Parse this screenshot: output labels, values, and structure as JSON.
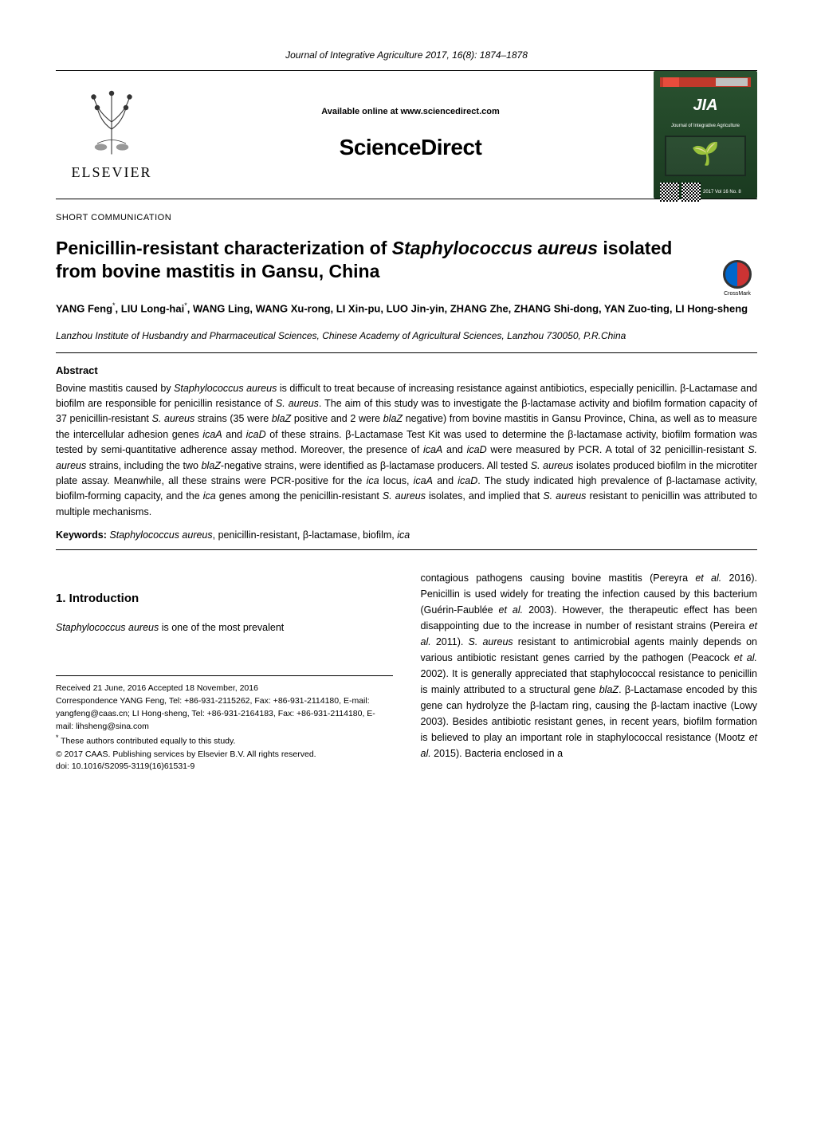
{
  "journal_citation": "Journal of Integrative Agriculture  2017, 16(8): 1874–1878",
  "header": {
    "available_text": "Available online at www.sciencedirect.com",
    "sciencedirect": "ScienceDirect",
    "elsevier": "ELSEVIER",
    "jia": {
      "title": "JIA",
      "subtitle": "Journal of Integrative Agriculture",
      "vol_info": "2017   Vol 16   No. 8"
    }
  },
  "crossmark_label": "CrossMark",
  "section_label": "SHORT COMMUNICATION",
  "article": {
    "title": "Penicillin-resistant characterization of <em>Staphylococcus aureus</em> isolated from bovine mastitis in Gansu, China",
    "authors": "YANG Feng<sup>*</sup>, LIU Long-hai<sup>*</sup>, WANG Ling, WANG Xu-rong, LI Xin-pu, LUO Jin-yin, ZHANG Zhe, ZHANG Shi-dong, YAN Zuo-ting, LI Hong-sheng",
    "affiliation": "Lanzhou Institute of Husbandry and Pharmaceutical Sciences, Chinese Academy of Agricultural Sciences, Lanzhou 730050, P.R.China"
  },
  "abstract": {
    "label": "Abstract",
    "text": "Bovine mastitis caused by <em>Staphylococcus aureus</em> is difficult to treat because of increasing resistance against antibiotics, especially penicillin.  β-Lactamase and biofilm are responsible for penicillin resistance of <em>S. aureus</em>.  The aim of this study was to investigate the β-lactamase activity and biofilm formation capacity of 37 penicillin-resistant <em>S. aureus</em> strains (35 were <em>blaZ</em> positive and 2 were <em>blaZ</em> negative) from bovine mastitis in Gansu Province, China, as well as to measure the intercellular adhesion genes <em>icaA</em> and <em>icaD</em> of these strains.  β-Lactamase Test Kit was used to determine the β-lactamase activity, biofilm formation was tested by semi-quantitative adherence assay method.  Moreover, the presence of <em>icaA</em> and <em>icaD</em> were measured by PCR.  A total of 32 penicillin-resistant <em>S. aureus</em> strains, including the two <em>blaZ</em>-negative strains, were identified as β-lactamase producers.  All tested <em>S. aureus</em> isolates produced biofilm in the microtiter plate assay.  Meanwhile, all these strains were PCR-positive for the <em>ica</em> locus, <em>icaA</em> and <em>icaD</em>.  The study indicated high prevalence of β-lactamase activity, biofilm-forming capacity, and the <em>ica</em> genes among the penicillin-resistant <em>S. aureus</em> isolates, and implied that <em>S. aureus</em> resistant to penicillin was attributed to multiple mechanisms."
  },
  "keywords": {
    "label": "Keywords:",
    "text": " <em>Staphylococcus aureus</em>, penicillin-resistant, β-lactamase, biofilm, <em>ica</em>"
  },
  "intro": {
    "heading": "1. Introduction",
    "col1_text": "<em>Staphylococcus aureus</em> is one of the most prevalent",
    "col2_text": "contagious pathogens causing bovine mastitis (Pereyra <em>et al.</em> 2016).  Penicillin is used widely for treating the infection caused by this bacterium (Guérin-Faublée <em>et al.</em> 2003).  However, the therapeutic effect has been disappointing due to the increase in number of resistant strains (Pereira <em>et al.</em> 2011).  <em>S. aureus</em> resistant to antimicrobial agents mainly depends on various antibiotic resistant genes carried by the pathogen (Peacock <em>et al.</em> 2002).  It is generally appreciated that staphylococcal resistance to penicillin is mainly attributed to a structural gene <em>blaZ</em>.  β-Lactamase encoded by this gene can hydrolyze the β-lactam ring, causing the β-lactam inactive (Lowy 2003).  Besides antibiotic resistant genes, in recent years, biofilm formation is believed to play an important role in staphylococcal resistance (Mootz <em>et al.</em> 2015).  Bacteria enclosed in a"
  },
  "footer": {
    "received": "Received  21 June, 2016    Accepted  18 November, 2016",
    "correspondence": "Correspondence YANG Feng, Tel: +86-931-2115262, Fax: +86-931-2114180, E-mail: yangfeng@caas.cn; LI Hong-sheng, Tel: +86-931-2164183, Fax: +86-931-2114180, E-mail: lihsheng@sina.com",
    "authors_note": "<sup>*</sup> These authors contributed equally to this study.",
    "copyright": "© 2017 CAAS. Publishing services by Elsevier B.V.  All rights reserved.",
    "doi": "doi: 10.1016/S2095-3119(16)61531-9"
  }
}
